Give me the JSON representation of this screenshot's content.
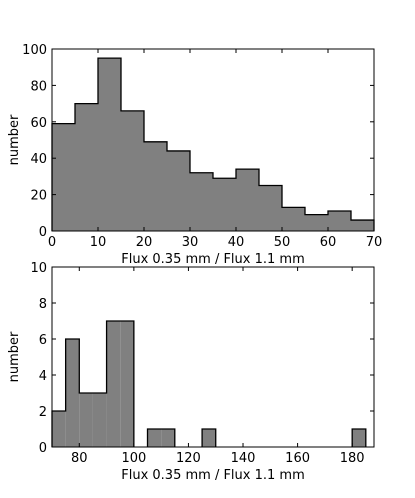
{
  "colors": {
    "bar_fill": "#808080",
    "bar_edge": "#000000",
    "axes": "#000000",
    "background": "#ffffff"
  },
  "chart_data": [
    {
      "type": "bar",
      "subtype": "histogram",
      "xlabel": "Flux 0.35 mm / Flux 1.1 mm",
      "ylabel": "number",
      "xlim": [
        0,
        70
      ],
      "ylim": [
        0,
        100
      ],
      "xticks": [
        0,
        10,
        20,
        30,
        40,
        50,
        60,
        70
      ],
      "yticks": [
        0,
        20,
        40,
        60,
        80,
        100
      ],
      "bin_edges": [
        0,
        5,
        10,
        15,
        20,
        25,
        30,
        35,
        40,
        45,
        50,
        55,
        60,
        65,
        70
      ],
      "values": [
        59,
        70,
        95,
        66,
        49,
        44,
        32,
        29,
        34,
        25,
        13,
        9,
        11,
        6
      ],
      "grid": false
    },
    {
      "type": "bar",
      "subtype": "histogram",
      "xlabel": "Flux 0.35 mm / Flux 1.1 mm",
      "ylabel": "number",
      "xlim": [
        70,
        188
      ],
      "ylim": [
        0,
        10
      ],
      "xticks": [
        80,
        100,
        120,
        140,
        160,
        180
      ],
      "yticks": [
        0,
        2,
        4,
        6,
        8,
        10
      ],
      "bin_edges": [
        70,
        75,
        80,
        85,
        90,
        95,
        100,
        105,
        110,
        115,
        120,
        125,
        130,
        135,
        140,
        145,
        150,
        155,
        160,
        165,
        170,
        175,
        180,
        185
      ],
      "values": [
        2,
        6,
        3,
        3,
        7,
        7,
        0,
        1,
        1,
        0,
        0,
        1,
        0,
        0,
        0,
        0,
        0,
        0,
        0,
        0,
        0,
        0,
        1
      ],
      "grid": false
    }
  ]
}
